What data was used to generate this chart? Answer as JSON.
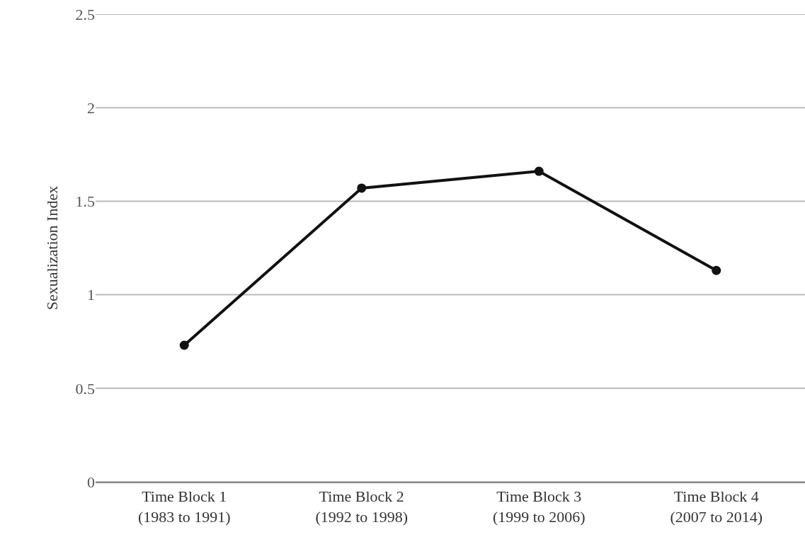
{
  "chart_data": {
    "type": "line",
    "ylabel": "Sexualization Index",
    "categories": [
      "Time Block 1\n(1983 to 1991)",
      "Time Block 2\n(1992 to 1998)",
      "Time Block 3\n(1999 to 2006)",
      "Time Block 4\n(2007 to 2014)"
    ],
    "series": [
      {
        "color": "#111111",
        "values": [
          0.73,
          1.57,
          1.66,
          1.13
        ]
      }
    ],
    "ylim": [
      0,
      2.5
    ],
    "yticks": [
      0,
      0.5,
      1,
      1.5,
      2,
      2.5
    ],
    "grid": "y",
    "marker": "circle",
    "line_style": "solid"
  }
}
